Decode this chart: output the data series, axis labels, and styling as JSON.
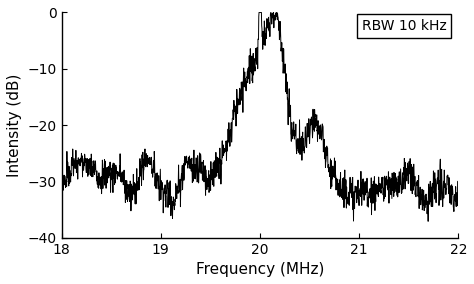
{
  "xlim": [
    18,
    22
  ],
  "ylim": [
    -40,
    0
  ],
  "xticks": [
    18,
    19,
    20,
    21,
    22
  ],
  "yticks": [
    0,
    -10,
    -20,
    -30,
    -40
  ],
  "xlabel": "Frequency (MHz)",
  "ylabel": "Intensity (dB)",
  "annotation": "RBW 10 kHz",
  "line_color": "#000000",
  "background_color": "#ffffff",
  "peak_freq": 20.0,
  "noise_floor": -33.5,
  "noise_std": 1.5,
  "seed": 7
}
